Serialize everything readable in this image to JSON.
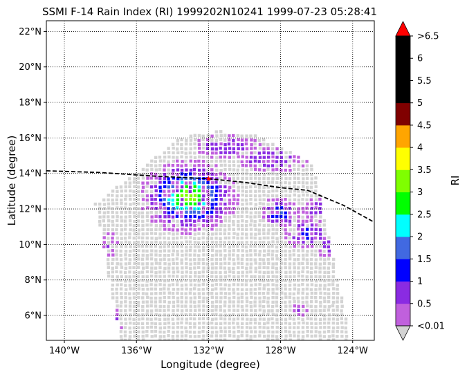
{
  "chart_data": {
    "type": "scatter",
    "title": "SSMI F-14 Rain Index (RI) 1999202N10241 1999-07-23 05:28:41",
    "xlabel": "Longitude (degree)",
    "ylabel": "Latitude (degree)",
    "xlim": [
      -141.0,
      -122.8
    ],
    "ylim": [
      4.6,
      22.6
    ],
    "x_ticks": [
      {
        "value": -140,
        "label": "140°W"
      },
      {
        "value": -136,
        "label": "136°W"
      },
      {
        "value": -132,
        "label": "132°W"
      },
      {
        "value": -128,
        "label": "128°W"
      },
      {
        "value": -124,
        "label": "124°W"
      }
    ],
    "y_ticks": [
      {
        "value": 6,
        "label": "6°N"
      },
      {
        "value": 8,
        "label": "8°N"
      },
      {
        "value": 10,
        "label": "10°N"
      },
      {
        "value": 12,
        "label": "12°N"
      },
      {
        "value": 14,
        "label": "14°N"
      },
      {
        "value": 16,
        "label": "16°N"
      },
      {
        "value": 18,
        "label": "18°N"
      },
      {
        "value": 20,
        "label": "20°N"
      },
      {
        "value": 22,
        "label": "22°N"
      }
    ],
    "grid": true,
    "grid_style": "dotted",
    "swath": {
      "color": "#d3d3d3",
      "corners": [
        [
          -138.3,
          12.3
        ],
        [
          -133.6,
          16.0
        ],
        [
          -131.5,
          16.4
        ],
        [
          -129.5,
          16.2
        ],
        [
          -126.2,
          14.6
        ],
        [
          -124.1,
          4.6
        ],
        [
          -136.9,
          4.6
        ]
      ]
    },
    "track": {
      "color": "#000000",
      "style": "dashed",
      "points": [
        [
          -141.0,
          14.15
        ],
        [
          -138.0,
          14.05
        ],
        [
          -135.0,
          13.85
        ],
        [
          -132.0,
          13.7
        ],
        [
          -130.0,
          13.5
        ],
        [
          -128.0,
          13.2
        ],
        [
          -126.5,
          13.05
        ],
        [
          -124.5,
          12.2
        ],
        [
          -122.8,
          11.25
        ]
      ]
    },
    "storm_center": {
      "lon": -132.0,
      "lat": 13.7,
      "color": "#ff0000"
    },
    "rain_cells": [
      {
        "name": "west-core",
        "lon": -133.1,
        "lat": 12.7,
        "spread_lon": 1.6,
        "spread_lat": 1.2,
        "peak_ri": 3.3
      },
      {
        "name": "west-band-north",
        "lon": -131.0,
        "lat": 15.5,
        "spread_lon": 1.5,
        "spread_lat": 0.5,
        "peak_ri": 0.9
      },
      {
        "name": "northeast-band",
        "lon": -128.5,
        "lat": 14.8,
        "spread_lon": 1.6,
        "spread_lat": 0.6,
        "peak_ri": 0.9
      },
      {
        "name": "east-core",
        "lon": -128.0,
        "lat": 11.8,
        "spread_lon": 0.7,
        "spread_lat": 0.6,
        "peak_ri": 1.7
      },
      {
        "name": "southeast-band",
        "lon": -126.5,
        "lat": 10.6,
        "spread_lon": 1.0,
        "spread_lat": 0.6,
        "peak_ri": 1.2
      },
      {
        "name": "far-east-band",
        "lon": -126.0,
        "lat": 12.0,
        "spread_lon": 0.6,
        "spread_lat": 0.5,
        "peak_ri": 0.8
      },
      {
        "name": "far-southeast",
        "lon": -125.4,
        "lat": 9.9,
        "spread_lon": 0.5,
        "spread_lat": 0.5,
        "peak_ri": 0.8
      },
      {
        "name": "southwest-spots",
        "lon": -137.3,
        "lat": 5.6,
        "spread_lon": 0.4,
        "spread_lat": 0.6,
        "peak_ri": 0.8
      },
      {
        "name": "west-spots",
        "lon": -137.5,
        "lat": 10.0,
        "spread_lon": 0.4,
        "spread_lat": 0.6,
        "peak_ri": 0.6
      },
      {
        "name": "south-spots",
        "lon": -127.0,
        "lat": 6.3,
        "spread_lon": 0.5,
        "spread_lat": 0.3,
        "peak_ri": 0.6
      }
    ],
    "colorbar": {
      "label": "RI",
      "levels": [
        0.01,
        0.5,
        1,
        1.5,
        2,
        2.5,
        3,
        3.5,
        4,
        4.5,
        5,
        5.5,
        6,
        6.5
      ],
      "colors": [
        "#c060dd",
        "#8a2be2",
        "#0000ff",
        "#4169e1",
        "#00ffff",
        "#00ff00",
        "#7fff00",
        "#ffff00",
        "#ffa500",
        "#800000",
        "#000000",
        "#000000",
        "#000000"
      ],
      "under_color": "#d3d3d3",
      "over_color": "#ff0000",
      "tick_labels": [
        "<0.01",
        "0.5",
        "1",
        "1.5",
        "2",
        "2.5",
        "3",
        "3.5",
        "4",
        "4.5",
        "5",
        "5.5",
        "6",
        ">6.5"
      ]
    }
  }
}
